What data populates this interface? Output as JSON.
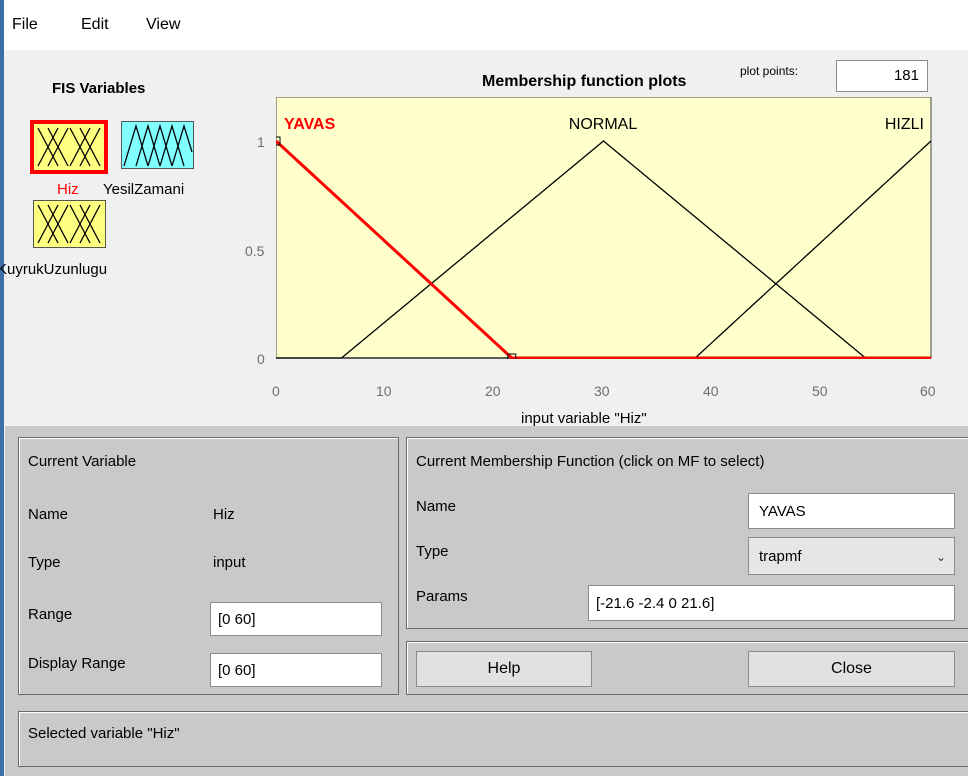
{
  "menu": [
    "File",
    "Edit",
    "View"
  ],
  "fis": {
    "title": "FIS Variables",
    "variables": [
      {
        "name": "Hiz",
        "selected": true,
        "color": "#ffff80"
      },
      {
        "name": "YesilZamani",
        "selected": false,
        "color": "#80ffff"
      },
      {
        "name": "KuyrukUzunlugu",
        "selected": false,
        "color": "#ffff80"
      }
    ]
  },
  "plot": {
    "title": "Membership function plots",
    "plot_points_label": "plot points:",
    "plot_points": "181",
    "xlabel": "input variable \"Hiz\"",
    "xticks": [
      "0",
      "10",
      "20",
      "30",
      "40",
      "50",
      "60"
    ],
    "yticks": [
      "0",
      "0.5",
      "1"
    ],
    "range": [
      0,
      60
    ],
    "mfs": [
      {
        "name": "YAVAS",
        "params": [
          -21.6,
          -2.4,
          0,
          21.6
        ],
        "selected": true
      },
      {
        "name": "NORMAL",
        "params": [
          6,
          30,
          54
        ],
        "selected": false
      },
      {
        "name": "HIZLI",
        "params": [
          38.4,
          60,
          81.6
        ],
        "selected": false
      }
    ],
    "selected_color": "#ff0000"
  },
  "current_variable": {
    "title": "Current Variable",
    "name_label": "Name",
    "name_value": "Hiz",
    "type_label": "Type",
    "type_value": "input",
    "range_label": "Range",
    "range_value": "[0 60]",
    "display_range_label": "Display Range",
    "display_range_value": "[0 60]"
  },
  "current_mf": {
    "title": "Current Membership Function (click on MF to select)",
    "name_label": "Name",
    "name_value": "YAVAS",
    "type_label": "Type",
    "type_value": "trapmf",
    "params_label": "Params",
    "params_value": "[-21.6 -2.4 0 21.6]"
  },
  "buttons": {
    "help": "Help",
    "close": "Close"
  },
  "status": "Selected variable \"Hiz\""
}
